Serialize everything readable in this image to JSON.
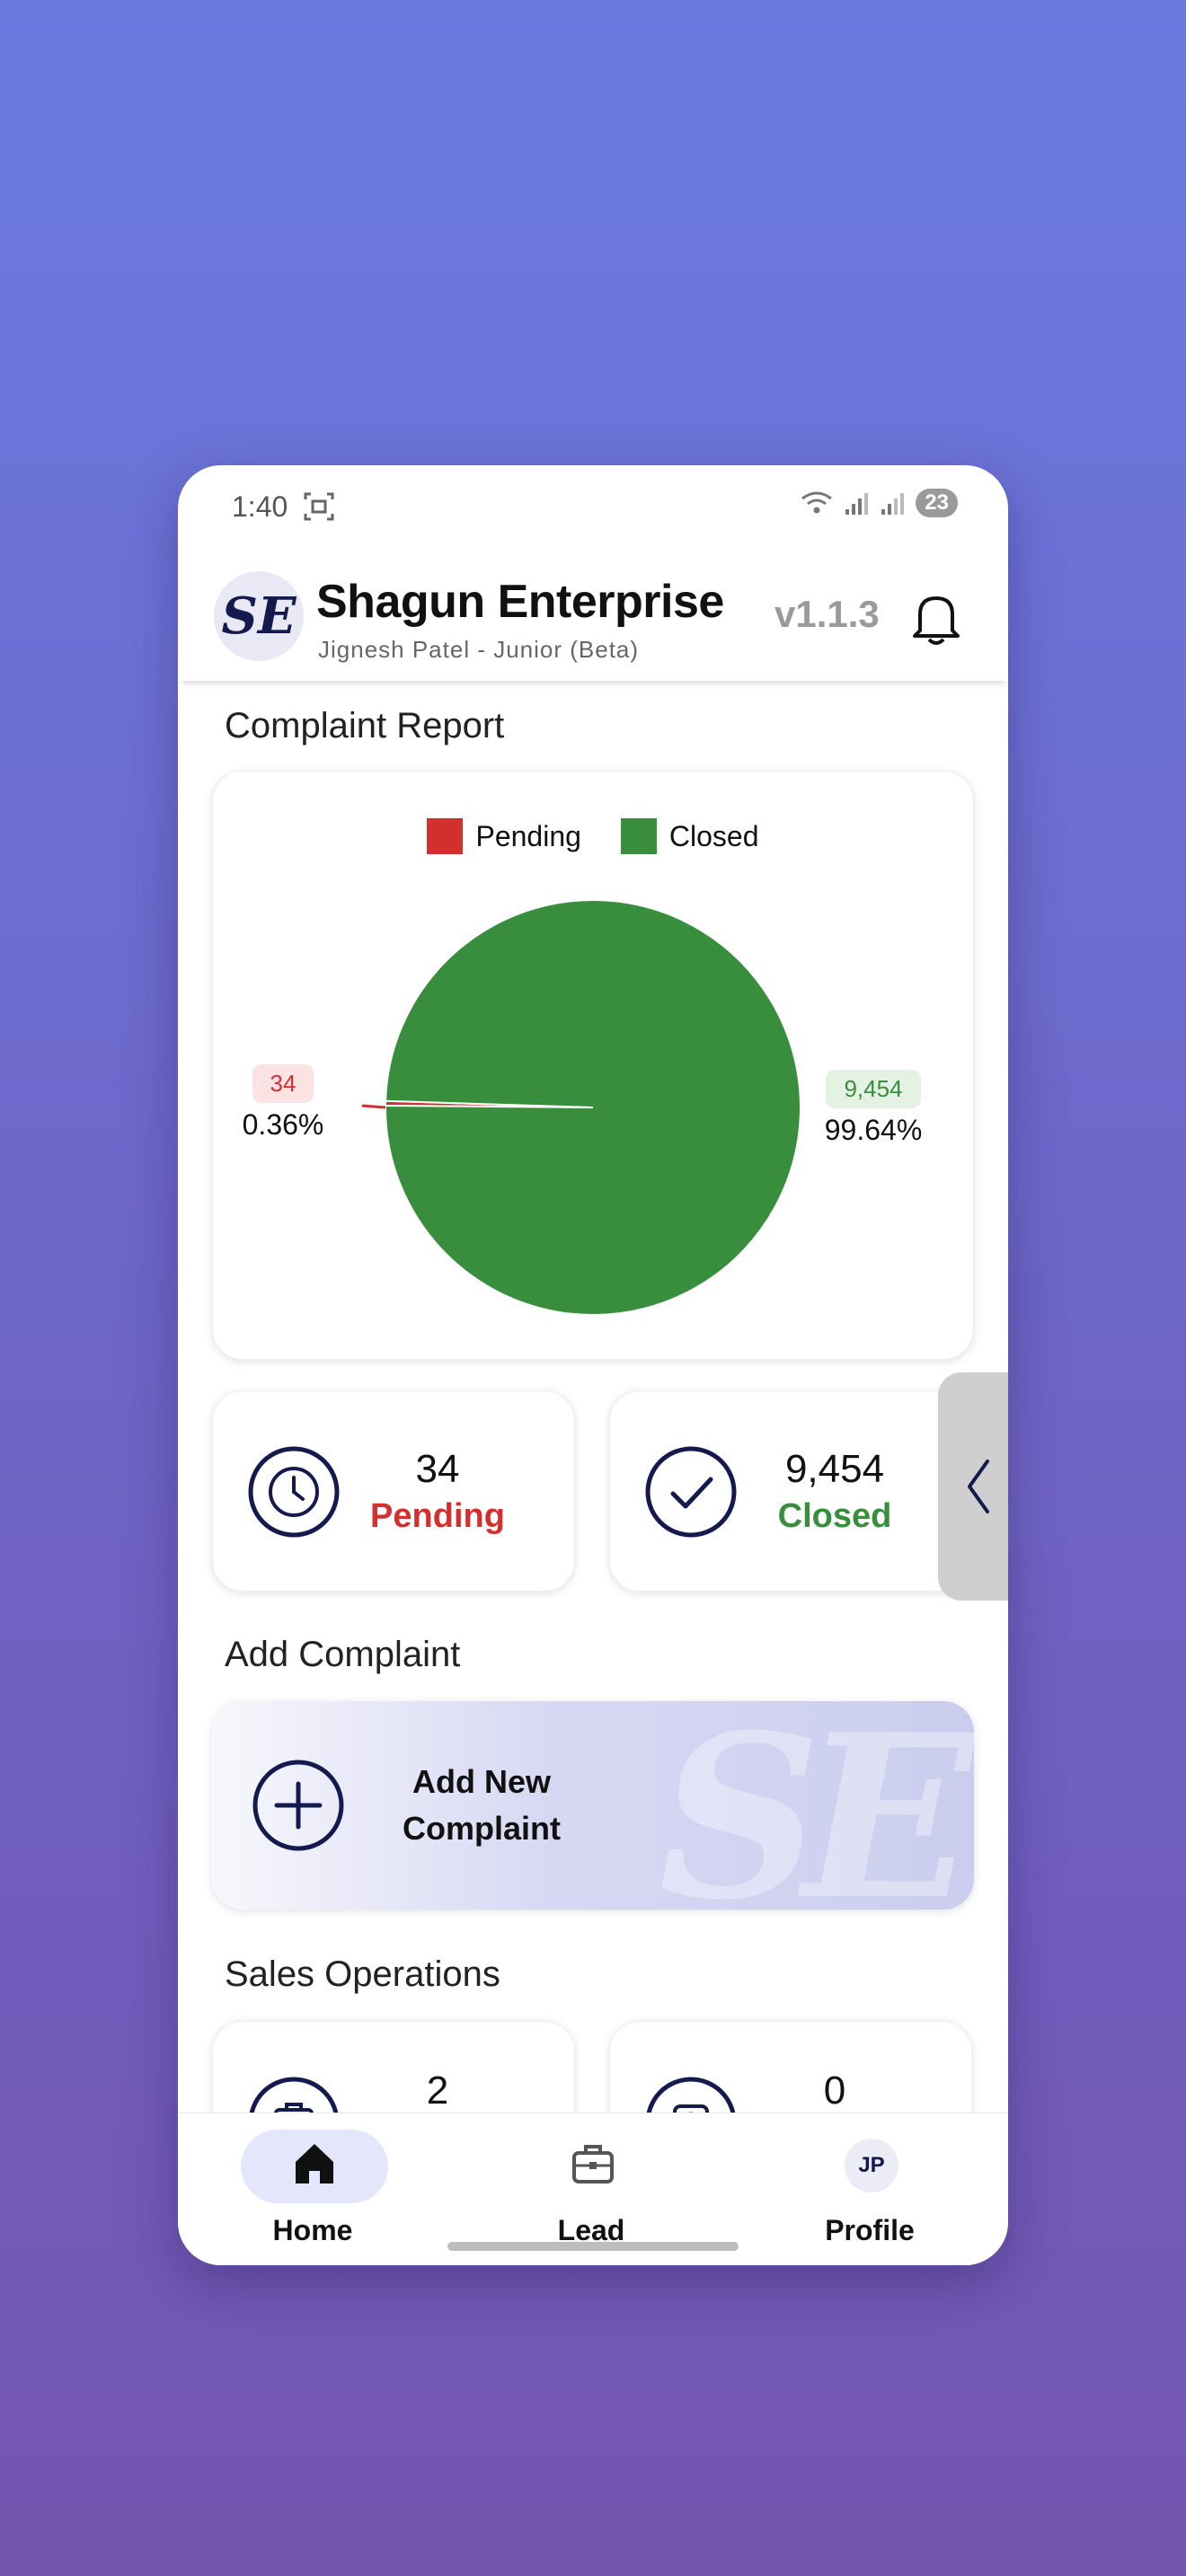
{
  "status": {
    "time": "1:40",
    "battery": "23"
  },
  "app": {
    "title": "Shagun Enterprise",
    "subtitle": "Jignesh Patel - Junior (Beta)",
    "version": "v1.1.3",
    "logo_text": "SE"
  },
  "complaint_report": {
    "section_title": "Complaint Report",
    "legend": [
      {
        "label": "Pending",
        "color": "#D32F2F"
      },
      {
        "label": "Closed",
        "color": "#388E3C"
      }
    ],
    "pending_label_value": "34",
    "pending_label_pct": "0.36%",
    "closed_label_value": "9,454",
    "closed_label_pct": "99.64%"
  },
  "chart_data": {
    "type": "pie",
    "categories": [
      "Pending",
      "Closed"
    ],
    "values": [
      34,
      9454
    ],
    "percentages": [
      0.36,
      99.64
    ],
    "colors": [
      "#D32F2F",
      "#388E3C"
    ],
    "legend_position": "top"
  },
  "stats": {
    "pending": {
      "value": "34",
      "label": "Pending",
      "color": "#D32F2F"
    },
    "closed": {
      "value": "9,454",
      "label": "Closed",
      "color": "#388E3C"
    }
  },
  "add_complaint": {
    "section_title": "Add Complaint",
    "button_line1": "Add New",
    "button_line2": "Complaint"
  },
  "sales_operations": {
    "section_title": "Sales Operations",
    "card1_value": "2",
    "card2_value": "0"
  },
  "nav": {
    "home": "Home",
    "lead": "Lead",
    "profile": "Profile",
    "avatar_initials": "JP",
    "icons": [
      "home-icon",
      "briefcase-icon",
      "avatar"
    ]
  }
}
